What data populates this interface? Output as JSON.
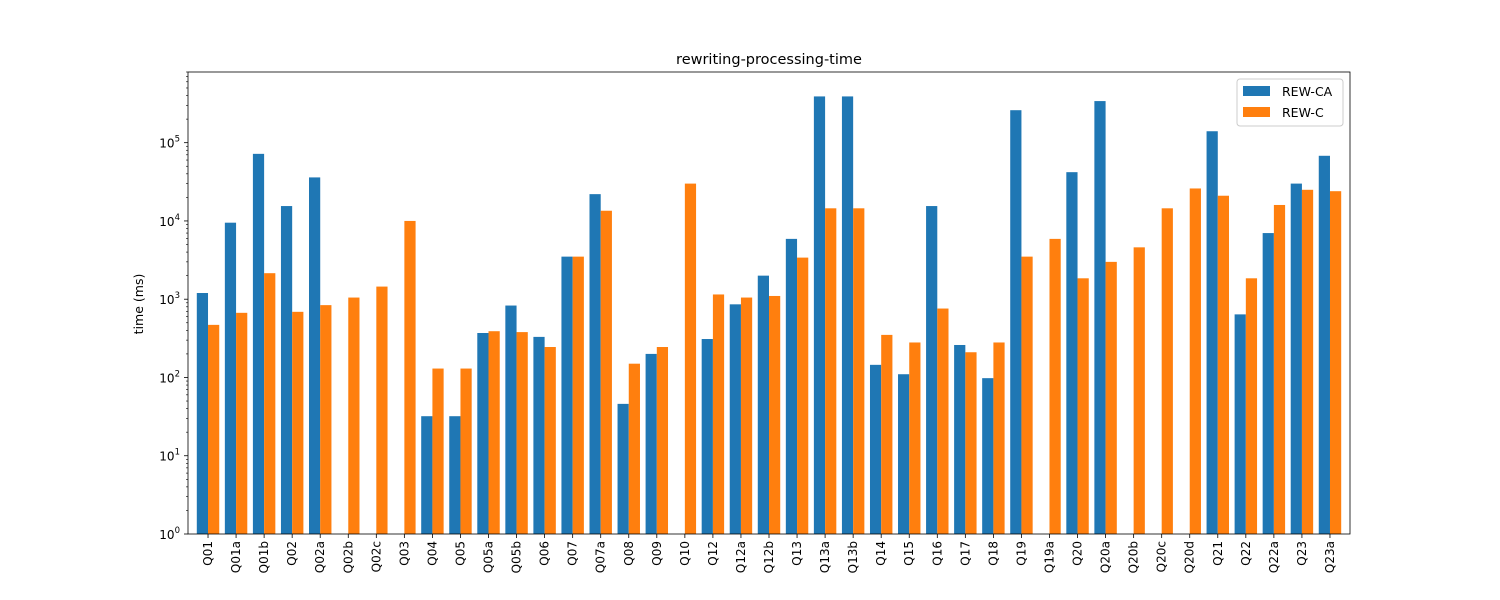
{
  "chart_data": {
    "type": "bar",
    "title": "rewriting-processing-time",
    "xlabel": "",
    "ylabel": "time (ms)",
    "yscale": "log",
    "ylim": [
      1,
      800000
    ],
    "y_ticks": [
      {
        "value": 1,
        "base": "10",
        "exp": "0"
      },
      {
        "value": 10,
        "base": "10",
        "exp": "1"
      },
      {
        "value": 100,
        "base": "10",
        "exp": "2"
      },
      {
        "value": 1000,
        "base": "10",
        "exp": "3"
      },
      {
        "value": 10000,
        "base": "10",
        "exp": "4"
      },
      {
        "value": 100000,
        "base": "10",
        "exp": "5"
      }
    ],
    "grid": false,
    "legend_position": "top-right",
    "categories": [
      "Q01",
      "Q01a",
      "Q01b",
      "Q02",
      "Q02a",
      "Q02b",
      "Q02c",
      "Q03",
      "Q04",
      "Q05",
      "Q05a",
      "Q05b",
      "Q06",
      "Q07",
      "Q07a",
      "Q08",
      "Q09",
      "Q10",
      "Q12",
      "Q12a",
      "Q12b",
      "Q13",
      "Q13a",
      "Q13b",
      "Q14",
      "Q15",
      "Q16",
      "Q17",
      "Q18",
      "Q19",
      "Q19a",
      "Q20",
      "Q20a",
      "Q20b",
      "Q20c",
      "Q20d",
      "Q21",
      "Q22",
      "Q22a",
      "Q23",
      "Q23a"
    ],
    "series": [
      {
        "name": "REW-CA",
        "color": "#1f77b4",
        "values": [
          1200,
          9500,
          72000,
          15500,
          36000,
          null,
          null,
          null,
          32,
          32,
          370,
          830,
          330,
          3500,
          22000,
          46,
          200,
          null,
          310,
          860,
          2000,
          5900,
          390000,
          390000,
          145,
          110,
          15500,
          260,
          98,
          260000,
          null,
          42000,
          340000,
          null,
          null,
          null,
          140000,
          640,
          7000,
          30000,
          68000
        ]
      },
      {
        "name": "REW-C",
        "color": "#ff7f0e",
        "values": [
          470,
          670,
          2150,
          690,
          840,
          1050,
          1450,
          10000,
          130,
          130,
          390,
          380,
          245,
          3500,
          13500,
          150,
          245,
          30000,
          1150,
          1050,
          1100,
          3400,
          14500,
          14500,
          350,
          280,
          760,
          210,
          280,
          3500,
          5900,
          1850,
          3000,
          4600,
          14500,
          26000,
          21000,
          1850,
          16000,
          25000,
          24000
        ]
      }
    ]
  }
}
